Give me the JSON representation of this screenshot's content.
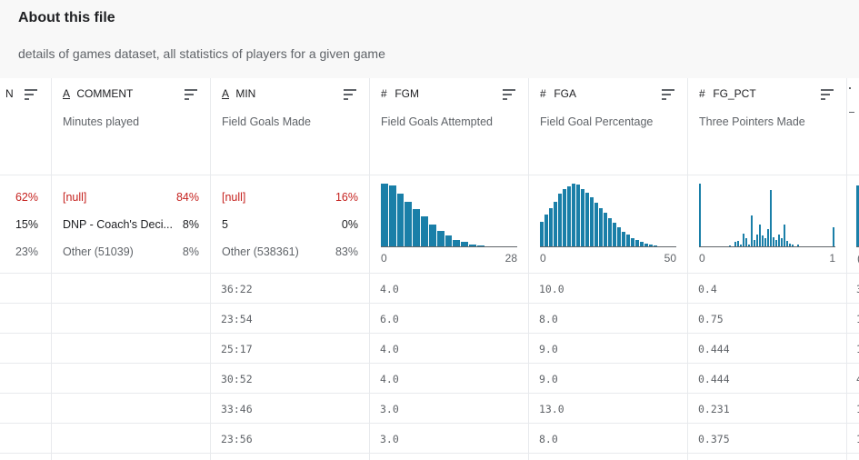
{
  "about": {
    "title": "About this file",
    "description": "details of games dataset, all statistics of players for a given game"
  },
  "partial_col": {
    "header_glyph": "N",
    "stats": [
      {
        "pct": "62%",
        "color": "null"
      },
      {
        "pct": "15%",
        "color": "txt"
      },
      {
        "pct": "23%",
        "color": "muted"
      }
    ]
  },
  "columns": [
    {
      "type_glyph": "A",
      "name": "COMMENT",
      "description": "Minutes played",
      "stats": [
        {
          "label": "[null]",
          "pct": "84%",
          "kind": "null"
        },
        {
          "label": "DNP - Coach's Deci...",
          "pct": "8%",
          "kind": "txt"
        },
        {
          "label": "Other (51039)",
          "pct": "8%",
          "kind": "muted"
        }
      ],
      "cells": [
        "",
        "",
        "",
        "",
        "",
        ""
      ]
    },
    {
      "type_glyph": "A",
      "name": "MIN",
      "description": "Field Goals Made",
      "stats": [
        {
          "label": "[null]",
          "pct": "16%",
          "kind": "null"
        },
        {
          "label": "5",
          "pct": "0%",
          "kind": "txt"
        },
        {
          "label": "Other (538361)",
          "pct": "83%",
          "kind": "muted"
        }
      ],
      "cells": [
        "36:22",
        "23:54",
        "25:17",
        "30:52",
        "33:46",
        "23:56"
      ]
    },
    {
      "type_glyph": "#",
      "name": "FGM",
      "description": "Field Goals Attempted",
      "histogram": {
        "min": "0",
        "max": "28",
        "counts": [
          100,
          97,
          85,
          72,
          60,
          48,
          36,
          26,
          18,
          12,
          8,
          5,
          3,
          2,
          1,
          1,
          0.5
        ]
      },
      "cells": [
        "4.0",
        "6.0",
        "4.0",
        "4.0",
        "3.0",
        "3.0"
      ]
    },
    {
      "type_glyph": "#",
      "name": "FGA",
      "description": "Field Goal Percentage",
      "histogram": {
        "min": "0",
        "max": "50",
        "counts": [
          40,
          52,
          62,
          72,
          85,
          92,
          96,
          100,
          98,
          92,
          86,
          78,
          70,
          62,
          54,
          46,
          38,
          31,
          25,
          20,
          15,
          11,
          8,
          6,
          4,
          3,
          2,
          1.5,
          1,
          0.5
        ]
      },
      "cells": [
        "10.0",
        "8.0",
        "9.0",
        "9.0",
        "13.0",
        "8.0"
      ]
    },
    {
      "type_glyph": "#",
      "name": "FG_PCT",
      "description": "Three Pointers Made",
      "histogram": {
        "min": "0",
        "max": "1",
        "counts": [
          100,
          0,
          0,
          0,
          0,
          0,
          0,
          0,
          0,
          0,
          0,
          3,
          2,
          8,
          10,
          5,
          22,
          15,
          4,
          50,
          12,
          20,
          36,
          18,
          14,
          28,
          90,
          16,
          12,
          20,
          14,
          36,
          10,
          6,
          4,
          2,
          4,
          2,
          1,
          0,
          0,
          0,
          0,
          0,
          0,
          0,
          0,
          0,
          0,
          32
        ]
      },
      "cells": [
        "0.4",
        "0.75",
        "0.444",
        "0.444",
        "0.231",
        "0.375"
      ]
    }
  ],
  "partial_right": {
    "cells": [
      "3",
      "1",
      "1",
      "4",
      "1",
      "1"
    ],
    "axis_glyph": "("
  }
}
